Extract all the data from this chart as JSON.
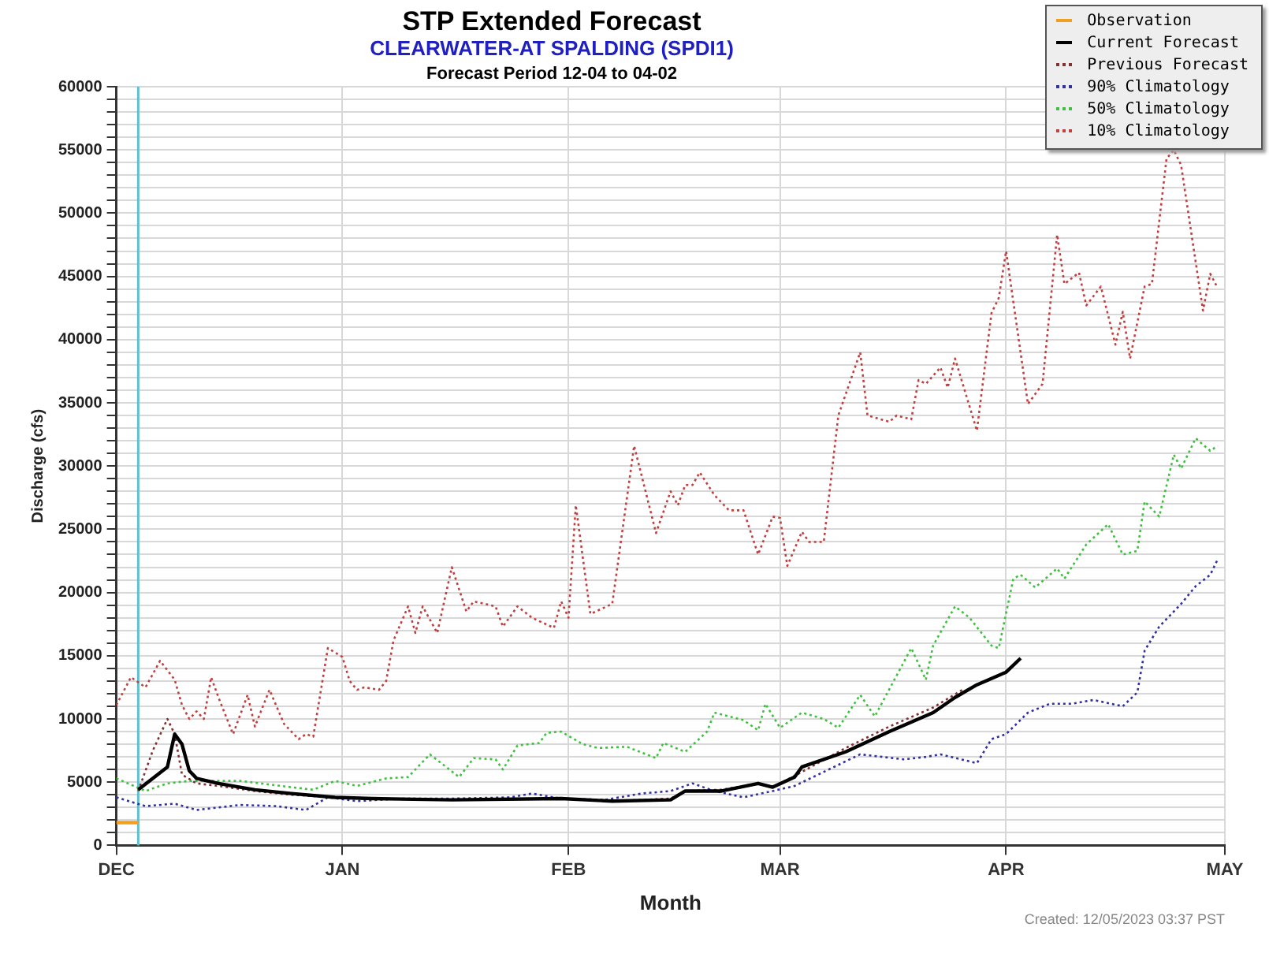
{
  "chart_data": {
    "type": "line",
    "title": "STP Extended Forecast",
    "subtitle": "CLEARWATER-AT SPALDING (SPDI1)",
    "xlabel": "Month",
    "ylabel": "Discharge (cfs)",
    "annotations": [
      "Forecast Period  12-04 to  04-02",
      "Created: 12/05/2023 03:37 PST"
    ],
    "xlim": [
      "2023-12-01",
      "2024-05-01"
    ],
    "xticks": [
      {
        "value": "2023-12-01",
        "label": "DEC"
      },
      {
        "value": "2024-01-01",
        "label": "JAN"
      },
      {
        "value": "2024-02-01",
        "label": "FEB"
      },
      {
        "value": "2024-03-01",
        "label": "MAR"
      },
      {
        "value": "2024-04-01",
        "label": "APR"
      },
      {
        "value": "2024-05-01",
        "label": "MAY"
      }
    ],
    "ylim": [
      0,
      60000
    ],
    "yticks": [
      0,
      {
        "value": 1000,
        "label": null
      },
      {
        "value": 2000,
        "label": null
      },
      {
        "value": 3000,
        "label": null
      },
      {
        "value": 4000,
        "label": null
      },
      5000,
      {
        "value": 6000,
        "label": null
      },
      {
        "value": 7000,
        "label": null
      },
      {
        "value": 8000,
        "label": null
      },
      {
        "value": 9000,
        "label": null
      },
      10000,
      {
        "value": 11000,
        "label": null
      },
      {
        "value": 12000,
        "label": null
      },
      {
        "value": 13000,
        "label": null
      },
      {
        "value": 14000,
        "label": null
      },
      15000,
      {
        "value": 16000,
        "label": null
      },
      {
        "value": 17000,
        "label": null
      },
      {
        "value": 18000,
        "label": null
      },
      {
        "value": 19000,
        "label": null
      },
      20000,
      {
        "value": 21000,
        "label": null
      },
      {
        "value": 22000,
        "label": null
      },
      {
        "value": 23000,
        "label": null
      },
      {
        "value": 24000,
        "label": null
      },
      25000,
      {
        "value": 26000,
        "label": null
      },
      {
        "value": 27000,
        "label": null
      },
      {
        "value": 28000,
        "label": null
      },
      {
        "value": 29000,
        "label": null
      },
      30000,
      {
        "value": 31000,
        "label": null
      },
      {
        "value": 32000,
        "label": null
      },
      {
        "value": 33000,
        "label": null
      },
      {
        "value": 34000,
        "label": null
      },
      35000,
      {
        "value": 36000,
        "label": null
      },
      {
        "value": 37000,
        "label": null
      },
      {
        "value": 38000,
        "label": null
      },
      {
        "value": 39000,
        "label": null
      },
      40000,
      {
        "value": 41000,
        "label": null
      },
      {
        "value": 42000,
        "label": null
      },
      {
        "value": 43000,
        "label": null
      },
      {
        "value": 44000,
        "label": null
      },
      45000,
      {
        "value": 46000,
        "label": null
      },
      {
        "value": 47000,
        "label": null
      },
      {
        "value": 48000,
        "label": null
      },
      {
        "value": 49000,
        "label": null
      },
      50000,
      {
        "value": 51000,
        "label": null
      },
      {
        "value": 52000,
        "label": null
      },
      {
        "value": 53000,
        "label": null
      },
      {
        "value": 54000,
        "label": null
      },
      55000,
      {
        "value": 56000,
        "label": null
      },
      {
        "value": 57000,
        "label": null
      },
      {
        "value": 58000,
        "label": null
      },
      {
        "value": 59000,
        "label": null
      },
      60000
    ],
    "grid": true,
    "legend": "top right",
    "marker": "none",
    "ref_lines": [
      {
        "axis": "x",
        "value": "2023-12-04",
        "label": null,
        "color": "#60c0d0"
      }
    ],
    "series": [
      {
        "name": "Observation",
        "color": "#f0a020",
        "line_style": "solid",
        "x": [
          "2023-12-01",
          "2023-12-04"
        ],
        "values": [
          1800,
          1800
        ]
      },
      {
        "name": "Current Forecast",
        "color": "#000000",
        "line_style": "solid",
        "x": [
          "2023-12-04",
          "2023-12-08",
          "2023-12-09",
          "2023-12-10",
          "2023-12-11",
          "2023-12-12",
          "2023-12-15",
          "2023-12-20",
          "2023-12-25",
          "2023-12-31",
          "2024-01-05",
          "2024-01-16",
          "2024-01-31",
          "2024-02-07",
          "2024-02-15",
          "2024-02-17",
          "2024-02-22",
          "2024-02-27",
          "2024-02-29",
          "2024-03-03",
          "2024-03-04",
          "2024-03-10",
          "2024-03-16",
          "2024-03-22",
          "2024-03-25",
          "2024-03-28",
          "2024-04-01",
          "2024-04-03"
        ],
        "values": [
          4400,
          6200,
          8800,
          8000,
          5900,
          5300,
          4900,
          4400,
          4100,
          3800,
          3700,
          3600,
          3700,
          3500,
          3600,
          4300,
          4300,
          4900,
          4600,
          5400,
          6200,
          7400,
          9000,
          10500,
          11700,
          12700,
          13700,
          14800
        ]
      },
      {
        "name": "Previous Forecast",
        "color": "#803030",
        "line_style": "dotted",
        "x": [
          "2023-12-04",
          "2023-12-06",
          "2023-12-08",
          "2023-12-09",
          "2023-12-10",
          "2023-12-12",
          "2023-12-15",
          "2023-12-20",
          "2023-12-25",
          "2023-12-31",
          "2024-01-05",
          "2024-01-16",
          "2024-01-31",
          "2024-02-07",
          "2024-02-15",
          "2024-02-17",
          "2024-02-22",
          "2024-02-27",
          "2024-02-29",
          "2024-03-03",
          "2024-03-10",
          "2024-03-16",
          "2024-03-22",
          "2024-03-26"
        ],
        "values": [
          4300,
          7500,
          10000,
          8800,
          5600,
          4900,
          4700,
          4300,
          4000,
          3800,
          3700,
          3600,
          3700,
          3500,
          3700,
          4300,
          4400,
          4900,
          4600,
          5500,
          7700,
          9400,
          10900,
          12300
        ]
      },
      {
        "name": "90% Climatology",
        "color": "#3030a0",
        "line_style": "dotted",
        "x": [
          "2023-12-01",
          "2023-12-05",
          "2023-12-09",
          "2023-12-12",
          "2023-12-18",
          "2023-12-23",
          "2023-12-27",
          "2023-12-30",
          "2024-01-03",
          "2024-01-09",
          "2024-01-16",
          "2024-01-24",
          "2024-01-27",
          "2024-01-31",
          "2024-02-06",
          "2024-02-11",
          "2024-02-15",
          "2024-02-18",
          "2024-02-21",
          "2024-02-25",
          "2024-02-29",
          "2024-03-03",
          "2024-03-12",
          "2024-03-18",
          "2024-03-21",
          "2024-03-23",
          "2024-03-28",
          "2024-03-30",
          "2024-04-01",
          "2024-04-04",
          "2024-04-07",
          "2024-04-10",
          "2024-04-13",
          "2024-04-17",
          "2024-04-19",
          "2024-04-20",
          "2024-04-22",
          "2024-04-25",
          "2024-04-27",
          "2024-04-29",
          "2024-04-30"
        ],
        "values": [
          3800,
          3100,
          3300,
          2800,
          3200,
          3100,
          2800,
          3800,
          3500,
          3700,
          3700,
          3800,
          4100,
          3700,
          3600,
          4100,
          4300,
          4900,
          4300,
          3800,
          4300,
          4700,
          7200,
          6800,
          7000,
          7200,
          6500,
          8400,
          8800,
          10500,
          11200,
          11200,
          11500,
          11000,
          12100,
          15400,
          17300,
          19100,
          20500,
          21400,
          22600
        ]
      },
      {
        "name": "50% Climatology",
        "color": "#40c040",
        "line_style": "dotted",
        "x": [
          "2023-12-01",
          "2023-12-05",
          "2023-12-08",
          "2023-12-11",
          "2023-12-18",
          "2023-12-25",
          "2023-12-28",
          "2023-12-31",
          "2024-01-03",
          "2024-01-07",
          "2024-01-10",
          "2024-01-13",
          "2024-01-15",
          "2024-01-17",
          "2024-01-19",
          "2024-01-22",
          "2024-01-23",
          "2024-01-25",
          "2024-01-28",
          "2024-01-29",
          "2024-01-31",
          "2024-02-03",
          "2024-02-05",
          "2024-02-09",
          "2024-02-13",
          "2024-02-14",
          "2024-02-17",
          "2024-02-20",
          "2024-02-21",
          "2024-02-25",
          "2024-02-27",
          "2024-02-28",
          "2024-03-01",
          "2024-03-04",
          "2024-03-07",
          "2024-03-09",
          "2024-03-12",
          "2024-03-14",
          "2024-03-19",
          "2024-03-21",
          "2024-03-22",
          "2024-03-25",
          "2024-03-27",
          "2024-03-30",
          "2024-03-31",
          "2024-04-02",
          "2024-04-03",
          "2024-04-05",
          "2024-04-08",
          "2024-04-09",
          "2024-04-12",
          "2024-04-15",
          "2024-04-17",
          "2024-04-19",
          "2024-04-20",
          "2024-04-22",
          "2024-04-24",
          "2024-04-25",
          "2024-04-27",
          "2024-04-29",
          "2024-04-30"
        ],
        "values": [
          5300,
          4300,
          4900,
          5100,
          5100,
          4600,
          4400,
          5100,
          4700,
          5300,
          5400,
          7200,
          6300,
          5400,
          6900,
          6800,
          6000,
          7900,
          8100,
          8900,
          9000,
          8000,
          7700,
          7800,
          6900,
          8100,
          7400,
          9000,
          10500,
          9900,
          9100,
          11200,
          9300,
          10500,
          10000,
          9300,
          11900,
          10200,
          15600,
          13100,
          15800,
          18900,
          18000,
          15800,
          15600,
          21100,
          21400,
          20400,
          21900,
          21100,
          23800,
          25400,
          23000,
          23300,
          27200,
          26000,
          30900,
          29800,
          32200,
          31200,
          31600
        ]
      },
      {
        "name": "10% Climatology",
        "color": "#c04040",
        "line_style": "dotted",
        "x": [
          "2023-12-01",
          "2023-12-03",
          "2023-12-05",
          "2023-12-07",
          "2023-12-09",
          "2023-12-10",
          "2023-12-11",
          "2023-12-12",
          "2023-12-13",
          "2023-12-14",
          "2023-12-15",
          "2023-12-17",
          "2023-12-19",
          "2023-12-20",
          "2023-12-22",
          "2023-12-24",
          "2023-12-26",
          "2023-12-27",
          "2023-12-28",
          "2023-12-30",
          "2024-01-01",
          "2024-01-02",
          "2024-01-03",
          "2024-01-04",
          "2024-01-06",
          "2024-01-07",
          "2024-01-08",
          "2024-01-10",
          "2024-01-11",
          "2024-01-12",
          "2024-01-14",
          "2024-01-16",
          "2024-01-18",
          "2024-01-19",
          "2024-01-22",
          "2024-01-23",
          "2024-01-25",
          "2024-01-27",
          "2024-01-30",
          "2024-01-31",
          "2024-02-01",
          "2024-02-02",
          "2024-02-04",
          "2024-02-07",
          "2024-02-10",
          "2024-02-13",
          "2024-02-15",
          "2024-02-16",
          "2024-02-17",
          "2024-02-18",
          "2024-02-19",
          "2024-02-21",
          "2024-02-23",
          "2024-02-25",
          "2024-02-27",
          "2024-02-29",
          "2024-03-01",
          "2024-03-02",
          "2024-03-04",
          "2024-03-05",
          "2024-03-07",
          "2024-03-09",
          "2024-03-12",
          "2024-03-13",
          "2024-03-16",
          "2024-03-17",
          "2024-03-19",
          "2024-03-20",
          "2024-03-21",
          "2024-03-23",
          "2024-03-24",
          "2024-03-25",
          "2024-03-28",
          "2024-03-30",
          "2024-03-31",
          "2024-04-01",
          "2024-04-04",
          "2024-04-06",
          "2024-04-08",
          "2024-04-09",
          "2024-04-11",
          "2024-04-12",
          "2024-04-14",
          "2024-04-16",
          "2024-04-17",
          "2024-04-18",
          "2024-04-20",
          "2024-04-21",
          "2024-04-23",
          "2024-04-24",
          "2024-04-25",
          "2024-04-28",
          "2024-04-29",
          "2024-04-30"
        ],
        "values": [
          11100,
          13300,
          12500,
          14600,
          13100,
          11100,
          10000,
          10600,
          10000,
          13300,
          11700,
          8800,
          11900,
          9400,
          12300,
          9600,
          8400,
          8800,
          8600,
          15600,
          14900,
          13000,
          12300,
          12500,
          12300,
          13000,
          16200,
          18900,
          16800,
          18900,
          16800,
          22000,
          18500,
          19300,
          18900,
          17300,
          18900,
          18000,
          17200,
          19300,
          18000,
          26900,
          18300,
          19100,
          31600,
          24700,
          28000,
          26900,
          28500,
          28500,
          29500,
          27700,
          26500,
          26500,
          23000,
          26000,
          25900,
          22100,
          24800,
          24000,
          24000,
          34000,
          39000,
          34000,
          33500,
          34000,
          33700,
          36800,
          36500,
          37800,
          36200,
          38500,
          32800,
          42100,
          43300,
          47000,
          34900,
          36500,
          48300,
          44400,
          45300,
          42700,
          44200,
          39600,
          42200,
          38500,
          44200,
          44400,
          54300,
          55000,
          53800,
          42300,
          45200,
          44100
        ]
      }
    ]
  }
}
